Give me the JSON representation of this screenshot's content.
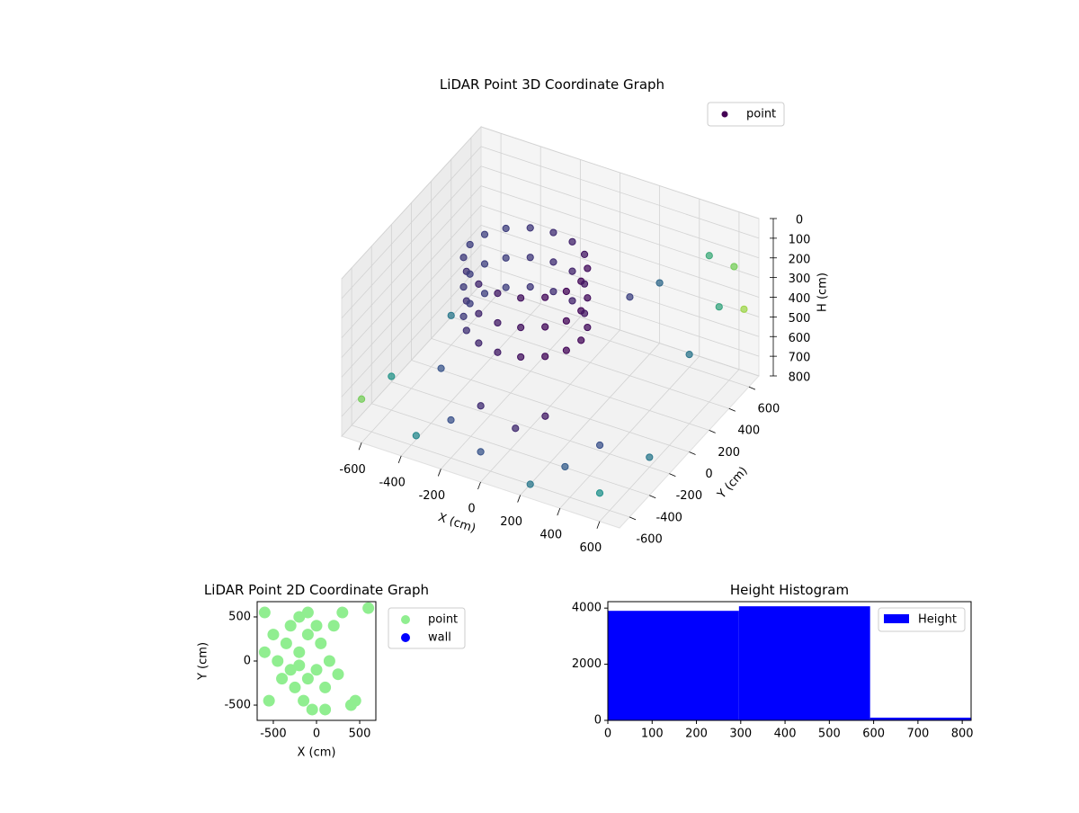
{
  "chart_data": [
    {
      "type": "scatter3d",
      "title": "LiDAR Point 3D Coordinate Graph",
      "x_label": "X (cm)",
      "y_label": "Y (cm)",
      "z_label": "H (cm)",
      "xlim": [
        -700,
        700
      ],
      "ylim": [
        -700,
        700
      ],
      "zlim": [
        800,
        0
      ],
      "xticks": [
        -600,
        -400,
        -200,
        0,
        200,
        400,
        600
      ],
      "yticks": [
        -600,
        -400,
        -200,
        0,
        200,
        400,
        600
      ],
      "zticks": [
        0,
        100,
        200,
        300,
        400,
        500,
        600,
        700,
        800
      ],
      "legend": "upper right",
      "grid": true,
      "series": [
        {
          "name": "point",
          "color": "#440154",
          "colormap": "viridis",
          "x": [
            130,
            109,
            48,
            -44,
            -150,
            -256,
            -348,
            -409,
            -430,
            -409,
            -348,
            -256,
            -150,
            -44,
            48,
            109,
            130,
            109,
            48,
            -44,
            -150,
            -256,
            -348,
            -409,
            -430,
            -409,
            -348,
            -256,
            -150,
            -44,
            48,
            109,
            130,
            109,
            48,
            -44,
            -150,
            -256,
            -348,
            -409,
            -430,
            -409,
            -348,
            -256,
            -150,
            -44,
            48,
            109,
            -650,
            -600,
            -500,
            -400,
            -300,
            -200,
            -100,
            0,
            100,
            200,
            300,
            400,
            500,
            600,
            650,
            500,
            600,
            300,
            200,
            -650,
            550,
            650
          ],
          "y": [
            50,
            156,
            248,
            309,
            330,
            309,
            248,
            156,
            50,
            -56,
            -148,
            -209,
            -230,
            -209,
            -148,
            -56,
            50,
            156,
            248,
            309,
            330,
            309,
            248,
            156,
            50,
            -56,
            -148,
            -209,
            -230,
            -209,
            -148,
            -56,
            50,
            156,
            248,
            309,
            330,
            309,
            248,
            156,
            50,
            -56,
            -148,
            -209,
            -230,
            -209,
            -148,
            -56,
            -300,
            200,
            -100,
            -550,
            -400,
            -300,
            -500,
            -350,
            -250,
            -600,
            -450,
            -300,
            -500,
            -200,
            400,
            600,
            650,
            500,
            400,
            -600,
            300,
            650
          ],
          "z": [
            150,
            150,
            150,
            150,
            150,
            150,
            150,
            150,
            150,
            150,
            150,
            150,
            150,
            150,
            150,
            150,
            300,
            300,
            300,
            300,
            300,
            300,
            300,
            300,
            300,
            300,
            300,
            300,
            300,
            300,
            300,
            300,
            450,
            450,
            450,
            450,
            450,
            450,
            450,
            450,
            450,
            450,
            450,
            450,
            450,
            450,
            450,
            450,
            700,
            650,
            720,
            780,
            750,
            700,
            790,
            720,
            680,
            800,
            760,
            700,
            800,
            750,
            300,
            200,
            250,
            350,
            400,
            650,
            520,
            450
          ]
        }
      ]
    },
    {
      "type": "scatter",
      "title": "LiDAR Point 2D Coordinate Graph",
      "x_label": "X (cm)",
      "y_label": "Y (cm)",
      "xlim": [
        -687,
        687
      ],
      "ylim": [
        -673,
        673
      ],
      "xticks": [
        -500,
        0,
        500
      ],
      "yticks": [
        -500,
        0,
        500
      ],
      "legend": "outside right",
      "series": [
        {
          "name": "point",
          "color": "#90ee90",
          "x": [
            -300,
            -200,
            -100,
            0,
            -250,
            -150,
            -50,
            100,
            150,
            50,
            -350,
            -400,
            -450,
            -200,
            -100,
            -550,
            -600,
            450,
            400,
            200,
            300,
            -600,
            600,
            0,
            -100,
            -200,
            250,
            100,
            -300,
            -500
          ],
          "y": [
            -100,
            100,
            300,
            400,
            -300,
            -450,
            -550,
            -300,
            0,
            200,
            200,
            -200,
            0,
            500,
            550,
            -450,
            100,
            -450,
            -500,
            400,
            550,
            550,
            600,
            -100,
            -200,
            -50,
            -150,
            -550,
            400,
            300
          ]
        },
        {
          "name": "wall",
          "color": "#0000ff",
          "x": [],
          "y": []
        }
      ]
    },
    {
      "type": "histogram",
      "title": "Height Histogram",
      "xlim": [
        0,
        820
      ],
      "ylim": [
        0,
        4230
      ],
      "xticks": [
        0,
        100,
        200,
        300,
        400,
        500,
        600,
        700,
        800
      ],
      "yticks": [
        0,
        2000,
        4000
      ],
      "legend": "upper right",
      "series": [
        {
          "name": "Height",
          "color": "#0000ff",
          "bins": [
            0,
            296,
            592,
            888
          ],
          "values": [
            3903,
            4065,
            97
          ]
        }
      ]
    }
  ]
}
